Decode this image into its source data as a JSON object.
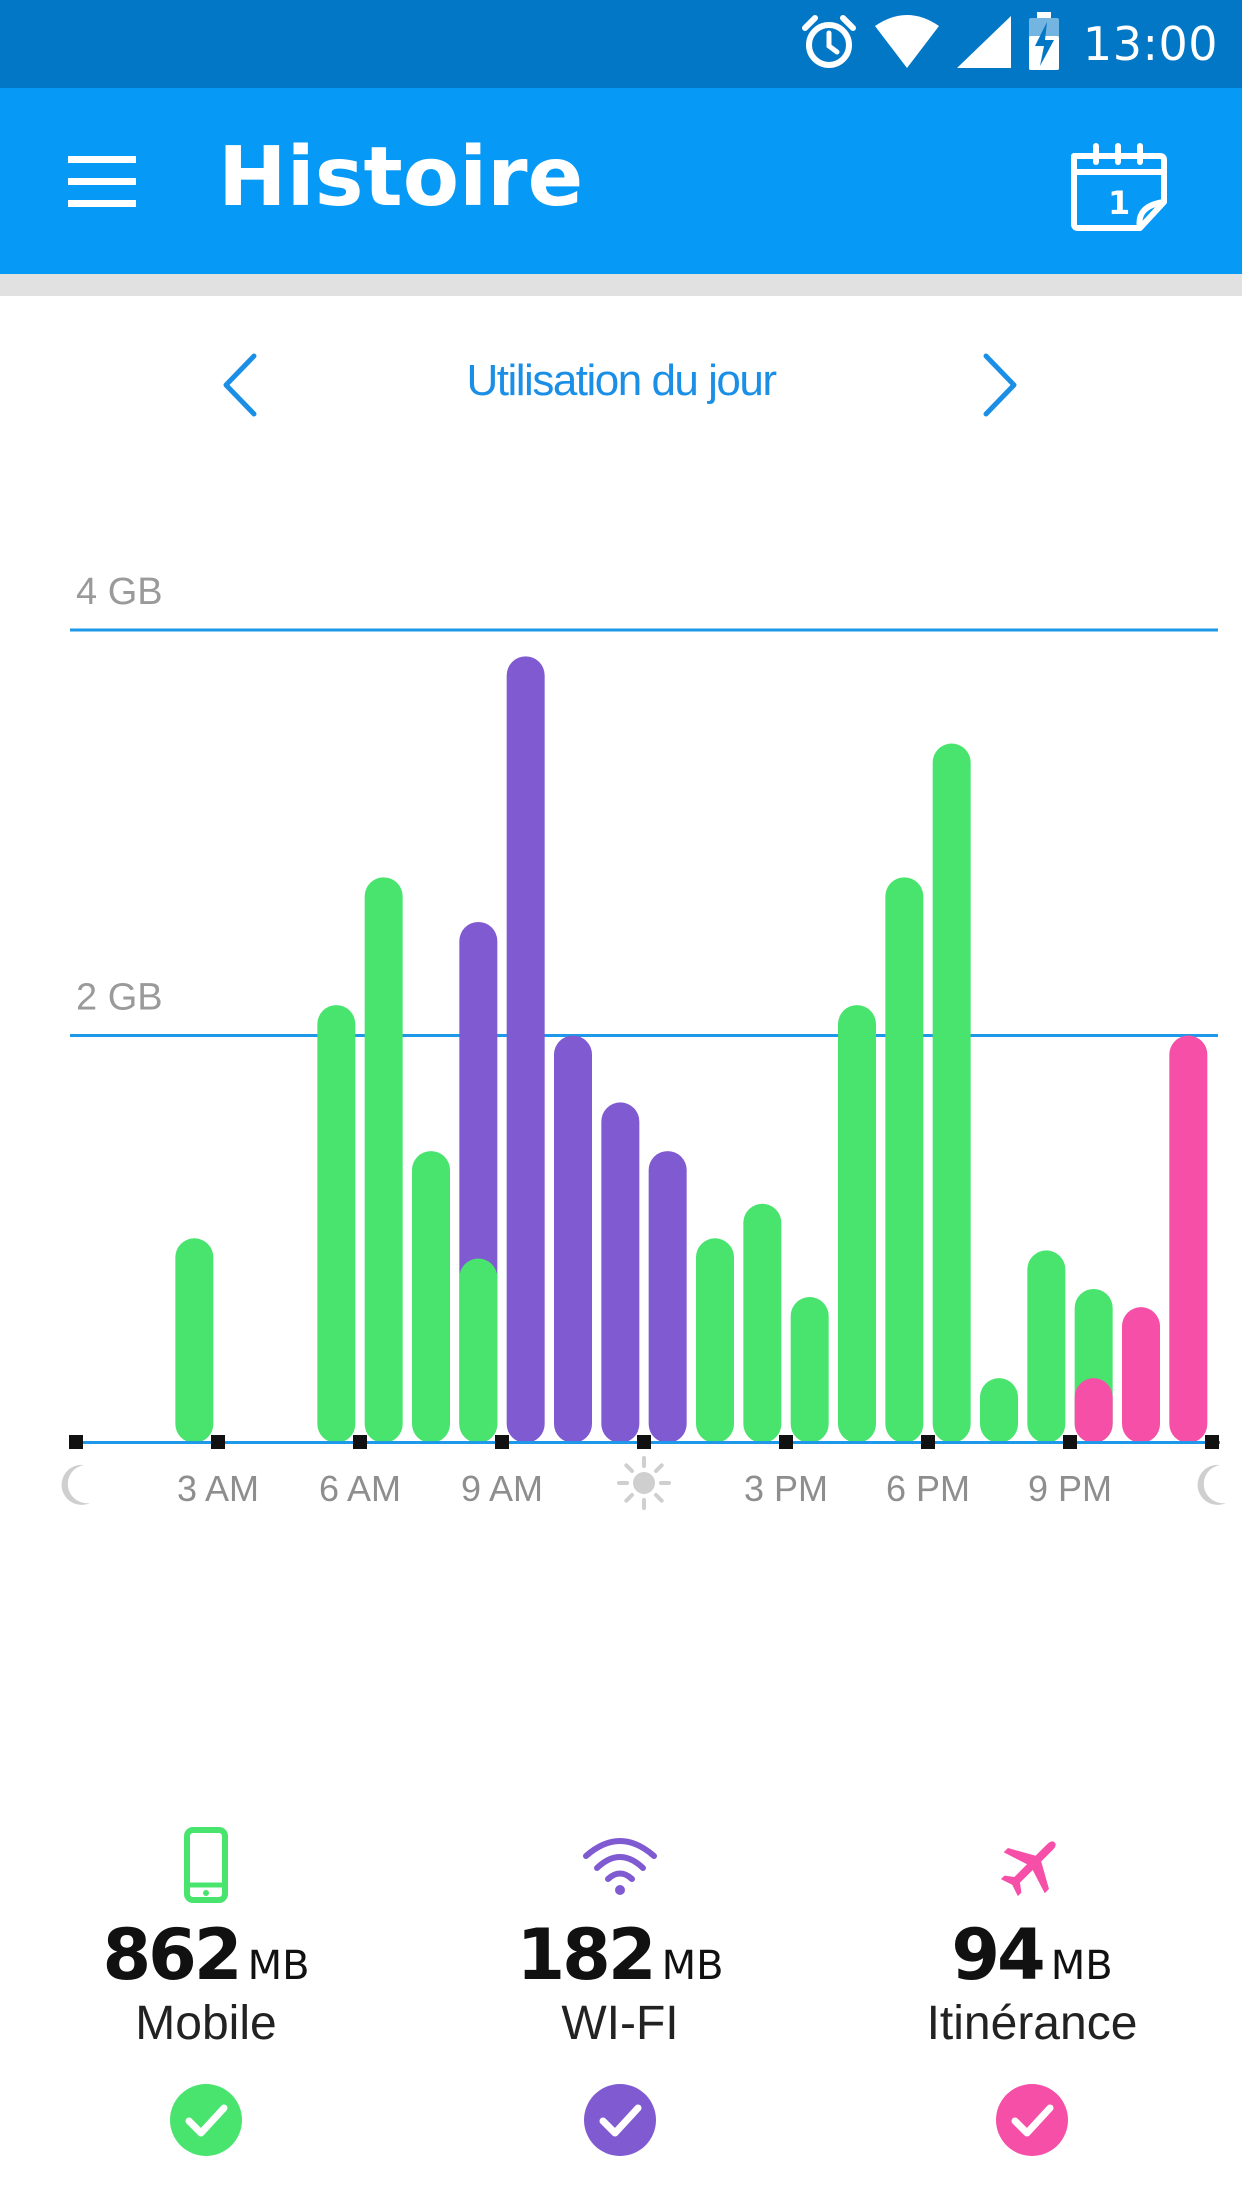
{
  "status_bar": {
    "time": "13:00",
    "icons": [
      "alarm-icon",
      "wifi-icon",
      "cellular-signal-icon",
      "battery-charging-icon"
    ]
  },
  "app_bar": {
    "title": "Histoire",
    "menu_icon": "hamburger-menu-icon",
    "calendar_icon": "calendar-today-icon",
    "calendar_day": "1"
  },
  "period_nav": {
    "title": "Utilisation du jour",
    "prev_icon": "chevron-left-icon",
    "next_icon": "chevron-right-icon"
  },
  "chart_data": {
    "type": "bar",
    "stacked": false,
    "y_gridlines": [
      {
        "value": 4,
        "label": "4 GB"
      },
      {
        "value": 2,
        "label": "2 GB"
      }
    ],
    "ylim": [
      0,
      4
    ],
    "x_ticks": [
      {
        "label": "",
        "icon": "moon-icon"
      },
      {
        "label": "3 AM"
      },
      {
        "label": "6 AM"
      },
      {
        "label": "9 AM"
      },
      {
        "label": "",
        "icon": "sun-icon"
      },
      {
        "label": "3 PM"
      },
      {
        "label": "6 PM"
      },
      {
        "label": "9 PM"
      },
      {
        "label": "",
        "icon": "moon-icon"
      }
    ],
    "series_colors": {
      "Mobile": "#48e46e",
      "WI-FI": "#805ad0",
      "Itinérance": "#f54fa8"
    },
    "bars": [
      {
        "hour": 2,
        "series": "Mobile",
        "value": 1.0
      },
      {
        "hour": 5,
        "series": "Mobile",
        "value": 2.15
      },
      {
        "hour": 6,
        "series": "Mobile",
        "value": 2.78
      },
      {
        "hour": 7,
        "series": "Mobile",
        "value": 1.43
      },
      {
        "hour": 8,
        "series": "WI-FI",
        "value": 2.56
      },
      {
        "hour": 8,
        "series": "Mobile",
        "value": 0.9
      },
      {
        "hour": 9,
        "series": "WI-FI",
        "value": 3.87
      },
      {
        "hour": 10,
        "series": "WI-FI",
        "value": 2.0
      },
      {
        "hour": 11,
        "series": "WI-FI",
        "value": 1.67
      },
      {
        "hour": 12,
        "series": "WI-FI",
        "value": 1.43
      },
      {
        "hour": 13,
        "series": "Mobile",
        "value": 1.0
      },
      {
        "hour": 14,
        "series": "Mobile",
        "value": 1.17
      },
      {
        "hour": 15,
        "series": "Mobile",
        "value": 0.71
      },
      {
        "hour": 16,
        "series": "Mobile",
        "value": 2.15
      },
      {
        "hour": 17,
        "series": "Mobile",
        "value": 2.78
      },
      {
        "hour": 18,
        "series": "Mobile",
        "value": 3.44
      },
      {
        "hour": 19,
        "series": "Mobile",
        "value": 0.31
      },
      {
        "hour": 20,
        "series": "Mobile",
        "value": 0.94
      },
      {
        "hour": 21,
        "series": "Mobile",
        "value": 0.75
      },
      {
        "hour": 21,
        "series": "Itinérance",
        "value": 0.31
      },
      {
        "hour": 22,
        "series": "Itinérance",
        "value": 0.66
      },
      {
        "hour": 23,
        "series": "Itinérance",
        "value": 2.0
      }
    ]
  },
  "summary": [
    {
      "icon": "smartphone-icon",
      "value": "862",
      "unit": "MB",
      "label": "Mobile",
      "color": "#48e46e",
      "check_icon": "check-circle-icon"
    },
    {
      "icon": "wifi-icon",
      "value": "182",
      "unit": "MB",
      "label": "WI-FI",
      "color": "#805ad0",
      "check_icon": "check-circle-icon"
    },
    {
      "icon": "airplane-icon",
      "value": "94",
      "unit": "MB",
      "label": "Itinérance",
      "color": "#f54fa8",
      "check_icon": "check-circle-icon"
    }
  ]
}
